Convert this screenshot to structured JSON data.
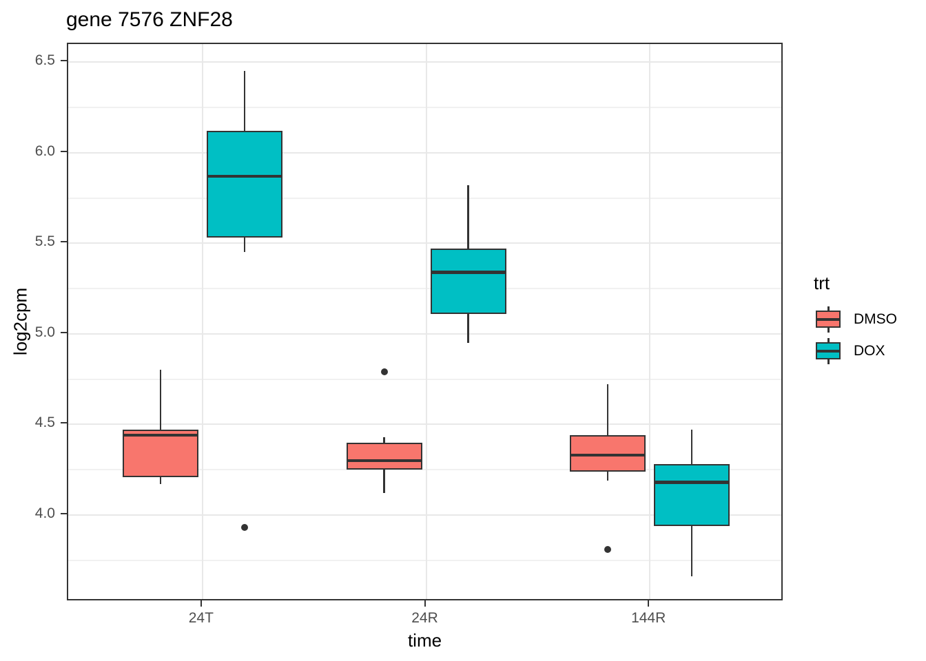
{
  "figure": {
    "title": "gene 7576 ZNF28"
  },
  "legend": {
    "title": "trt",
    "entries": [
      {
        "label": "DMSO",
        "color": "#F8766D"
      },
      {
        "label": "DOX",
        "color": "#00BFC4"
      }
    ]
  },
  "chart_data": {
    "type": "boxplot",
    "title": "gene 7576 ZNF28",
    "xlabel": "time",
    "ylabel": "log2cpm",
    "categories": [
      "24T",
      "24R",
      "144R"
    ],
    "ylim": [
      3.52,
      6.6
    ],
    "y_major_ticks": [
      6.5,
      6.0,
      5.5,
      5.0,
      4.5,
      4.0
    ],
    "y_tick_labels": [
      "6.5",
      "6.0",
      "5.5",
      "5.0",
      "4.5",
      "4.0"
    ],
    "y_minor_ticks": [
      6.25,
      5.75,
      5.25,
      4.75,
      4.25,
      3.75
    ],
    "grid": true,
    "legend_position": "right",
    "legend_title": "trt",
    "series": [
      {
        "name": "DMSO",
        "color": "#F8766D",
        "boxes": [
          {
            "category": "24T",
            "whisker_low": 4.17,
            "q1": 4.21,
            "median": 4.44,
            "q3": 4.47,
            "whisker_high": 4.8,
            "outliers": []
          },
          {
            "category": "24R",
            "whisker_low": 4.12,
            "q1": 4.25,
            "median": 4.3,
            "q3": 4.4,
            "whisker_high": 4.43,
            "outliers": [
              4.79
            ]
          },
          {
            "category": "144R",
            "whisker_low": 4.19,
            "q1": 4.24,
            "median": 4.33,
            "q3": 4.44,
            "whisker_high": 4.72,
            "outliers": [
              3.81
            ]
          }
        ]
      },
      {
        "name": "DOX",
        "color": "#00BFC4",
        "boxes": [
          {
            "category": "24T",
            "whisker_low": 5.45,
            "q1": 5.53,
            "median": 5.87,
            "q3": 6.12,
            "whisker_high": 6.45,
            "outliers": [
              3.93
            ]
          },
          {
            "category": "24R",
            "whisker_low": 4.95,
            "q1": 5.11,
            "median": 5.34,
            "q3": 5.47,
            "whisker_high": 5.82,
            "outliers": []
          },
          {
            "category": "144R",
            "whisker_low": 3.66,
            "q1": 3.94,
            "median": 4.18,
            "q3": 4.28,
            "whisker_high": 4.47,
            "outliers": []
          }
        ]
      }
    ],
    "style": {
      "box_border": "#333333",
      "outlier_color": "#333333",
      "grid_major": "#E8E8E8",
      "grid_minor": "#F1F1F1",
      "panel_border": "#333333",
      "axis_text_color": "#4D4D4D",
      "axis_title_color": "#000000"
    }
  }
}
